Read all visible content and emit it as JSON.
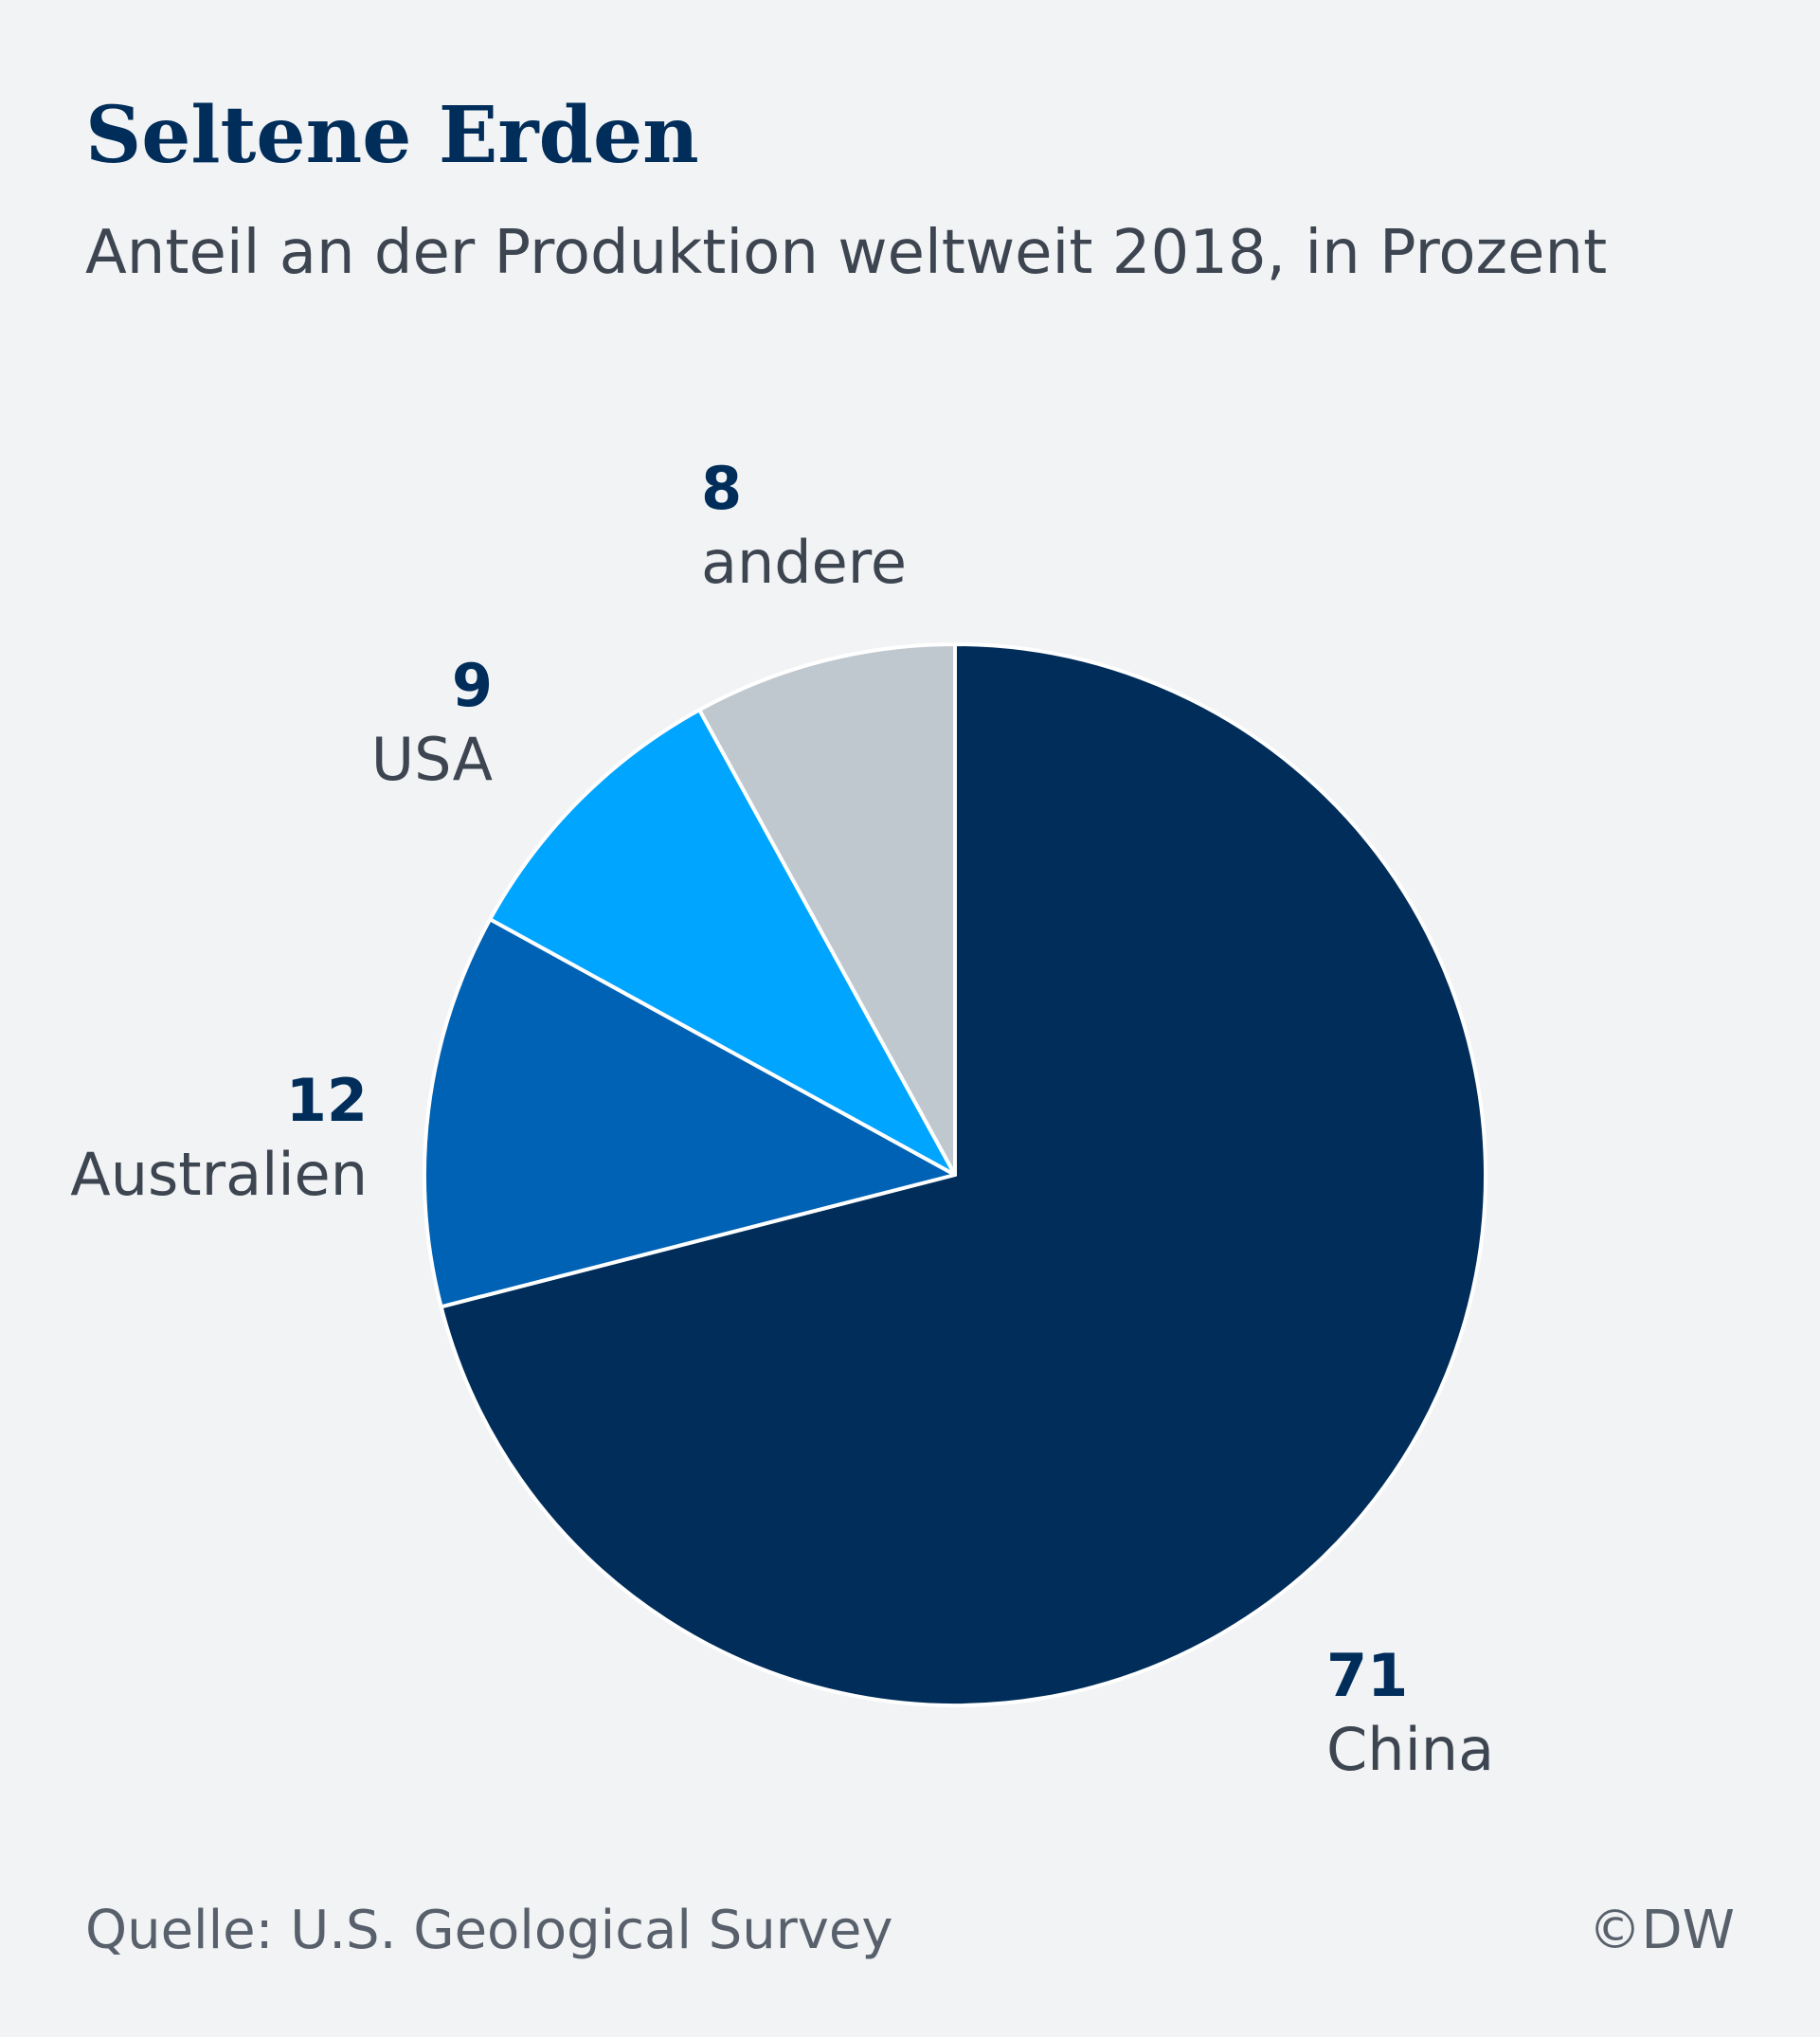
{
  "chart_data": {
    "type": "pie",
    "title": "Seltene Erden",
    "subtitle": "Anteil an der Produktion weltweit 2018, in Prozent",
    "slices": [
      {
        "label": "China",
        "value": 71,
        "color": "#002d5a"
      },
      {
        "label": "Australien",
        "value": 12,
        "color": "#0062b4"
      },
      {
        "label": "USA",
        "value": 9,
        "color": "#00a5ff"
      },
      {
        "label": "andere",
        "value": 8,
        "color": "#bfc7cf"
      }
    ],
    "start": "12 o'clock",
    "direction": "clockwise",
    "legend": "none"
  },
  "footer": {
    "source": "Quelle: U.S. Geological Survey",
    "credit": "©DW"
  }
}
